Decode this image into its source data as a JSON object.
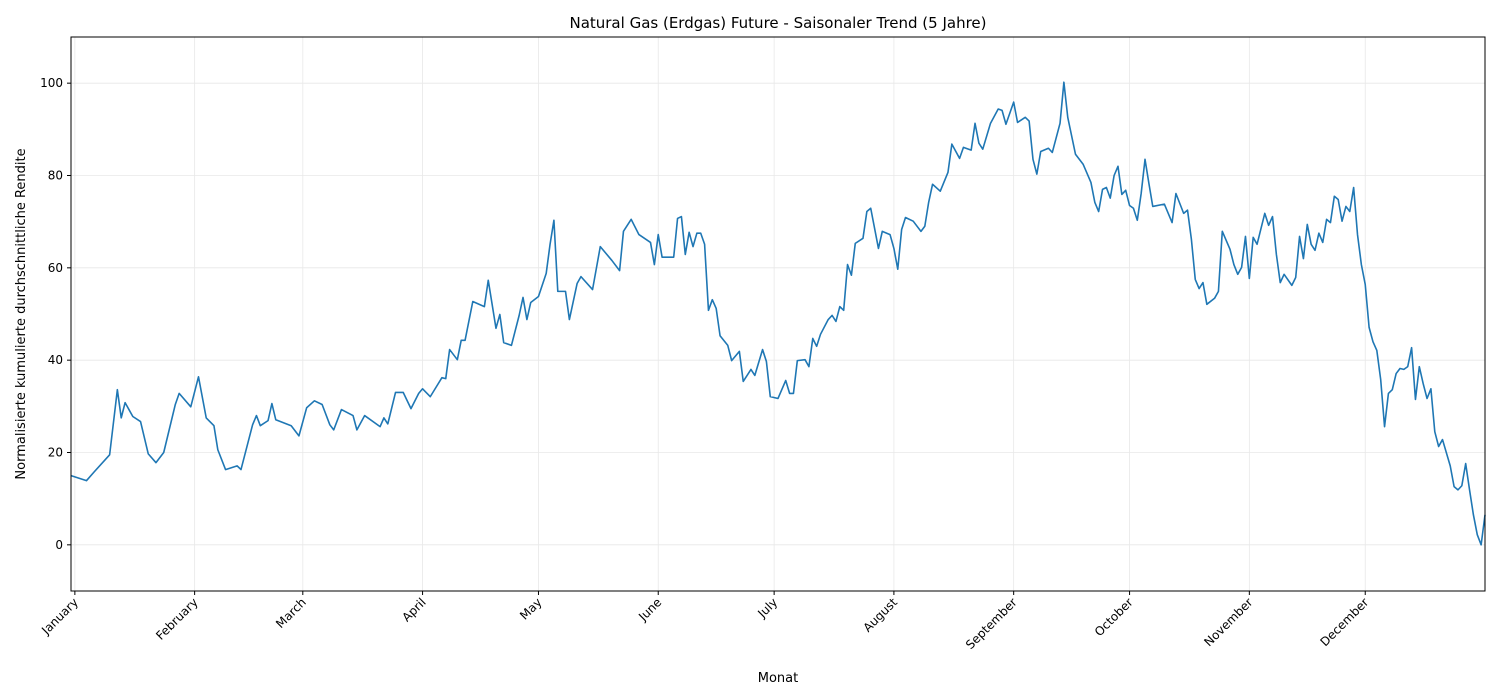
{
  "chart_data": {
    "type": "line",
    "title": "Natural Gas (Erdgas) Future - Saisonaler Trend (5 Jahre)",
    "xlabel": "Monat",
    "ylabel": "Normalisierte kumulierte durchschnittliche Rendite",
    "xlim": [
      0,
      366
    ],
    "ylim": [
      -10,
      110
    ],
    "xticks": [
      {
        "value": 1,
        "label": "January"
      },
      {
        "value": 32,
        "label": "February"
      },
      {
        "value": 60,
        "label": "March"
      },
      {
        "value": 91,
        "label": "April"
      },
      {
        "value": 121,
        "label": "May"
      },
      {
        "value": 152,
        "label": "June"
      },
      {
        "value": 182,
        "label": "July"
      },
      {
        "value": 213,
        "label": "August"
      },
      {
        "value": 244,
        "label": "September"
      },
      {
        "value": 274,
        "label": "October"
      },
      {
        "value": 305,
        "label": "November"
      },
      {
        "value": 335,
        "label": "December"
      }
    ],
    "yticks": [
      0,
      20,
      40,
      60,
      80,
      100
    ],
    "grid": true,
    "color": "#1f77b4",
    "x": [
      0,
      4,
      6,
      10,
      12,
      13,
      14,
      16,
      18,
      20,
      22,
      24,
      27,
      28,
      31,
      33,
      35,
      37,
      38,
      40,
      43,
      44,
      47,
      48,
      49,
      51,
      52,
      53,
      57,
      59,
      61,
      63,
      65,
      67,
      68,
      70,
      73,
      74,
      76,
      80,
      81,
      82,
      84,
      86,
      88,
      90,
      91,
      93,
      96,
      97,
      98,
      100,
      101,
      102,
      104,
      107,
      108,
      110,
      111,
      112,
      114,
      116,
      117,
      118,
      119,
      121,
      123,
      124,
      125,
      126,
      128,
      129,
      131,
      132,
      135,
      137,
      140,
      142,
      143,
      145,
      147,
      150,
      151,
      152,
      153,
      156,
      157,
      158,
      159,
      160,
      161,
      162,
      163,
      164,
      165,
      166,
      167,
      168,
      170,
      171,
      173,
      174,
      176,
      177,
      179,
      180,
      181,
      183,
      185,
      186,
      187,
      188,
      190,
      191,
      192,
      193,
      194,
      196,
      197,
      198,
      199,
      200,
      201,
      202,
      203,
      205,
      206,
      207,
      209,
      210,
      212,
      213,
      214,
      215,
      216,
      218,
      220,
      221,
      222,
      223,
      225,
      227,
      228,
      230,
      231,
      233,
      234,
      235,
      236,
      238,
      240,
      241,
      242,
      244,
      245,
      247,
      248,
      249,
      250,
      251,
      253,
      254,
      256,
      257,
      258,
      260,
      262,
      264,
      265,
      266,
      267,
      268,
      269,
      270,
      271,
      272,
      273,
      274,
      275,
      276,
      277,
      278,
      279,
      280,
      283,
      285,
      286,
      288,
      289,
      290,
      291,
      292,
      293,
      294,
      296,
      297,
      298,
      300,
      301,
      302,
      303,
      304,
      305,
      306,
      307,
      309,
      310,
      311,
      312,
      313,
      314,
      316,
      317,
      318,
      319,
      320,
      321,
      322,
      323,
      324,
      325,
      326,
      327,
      328,
      329,
      330,
      331,
      332,
      333,
      334,
      335,
      336,
      337,
      338,
      339,
      340,
      341,
      342,
      343,
      344,
      345,
      346,
      347,
      348,
      349,
      350,
      351,
      352,
      353,
      354,
      355,
      357,
      358,
      359,
      360,
      361,
      362,
      363,
      364,
      365,
      366
    ],
    "values": [
      15.0,
      13.9,
      15.8,
      19.5,
      33.6,
      27.5,
      30.8,
      27.8,
      26.7,
      19.7,
      17.8,
      20.0,
      30.4,
      32.8,
      29.9,
      36.4,
      27.5,
      25.8,
      20.6,
      16.3,
      17.1,
      16.3,
      26.0,
      28.0,
      25.8,
      26.9,
      30.6,
      27.1,
      25.8,
      23.6,
      29.7,
      31.2,
      30.4,
      26.0,
      24.9,
      29.3,
      28.0,
      24.9,
      28.0,
      25.6,
      27.5,
      26.2,
      33.0,
      33.0,
      29.5,
      32.8,
      33.8,
      32.1,
      36.2,
      36.0,
      42.3,
      40.1,
      44.3,
      44.3,
      52.7,
      51.6,
      57.3,
      46.9,
      49.9,
      43.8,
      43.2,
      49.7,
      53.6,
      48.8,
      52.5,
      53.8,
      58.8,
      65.1,
      70.3,
      54.9,
      54.9,
      48.8,
      56.6,
      58.1,
      55.3,
      64.6,
      61.6,
      59.4,
      67.9,
      70.5,
      67.2,
      65.5,
      60.7,
      67.2,
      62.3,
      62.3,
      70.7,
      71.1,
      62.9,
      67.7,
      64.6,
      67.5,
      67.5,
      65.1,
      50.8,
      53.1,
      51.2,
      45.3,
      43.2,
      39.9,
      41.9,
      35.4,
      38.0,
      36.7,
      42.3,
      39.7,
      32.1,
      31.7,
      35.6,
      32.8,
      32.8,
      39.9,
      40.1,
      38.6,
      44.7,
      43.0,
      45.6,
      48.8,
      49.7,
      48.4,
      51.6,
      50.8,
      60.7,
      58.4,
      65.3,
      66.4,
      72.2,
      72.9,
      64.2,
      67.9,
      67.2,
      64.2,
      59.7,
      68.3,
      70.9,
      70.1,
      67.9,
      69.0,
      74.2,
      78.1,
      76.6,
      80.7,
      86.8,
      83.7,
      86.1,
      85.5,
      91.3,
      87.0,
      85.7,
      91.3,
      94.4,
      94.1,
      91.1,
      95.9,
      91.5,
      92.6,
      91.8,
      83.5,
      80.3,
      85.2,
      85.9,
      85.0,
      91.3,
      100.2,
      92.6,
      84.6,
      82.4,
      78.5,
      74.2,
      72.2,
      77.0,
      77.4,
      75.1,
      80.0,
      82.0,
      75.9,
      76.8,
      73.5,
      72.9,
      70.3,
      76.1,
      83.5,
      78.3,
      73.3,
      73.8,
      69.8,
      76.1,
      71.8,
      72.5,
      66.2,
      57.5,
      55.5,
      56.8,
      52.1,
      53.4,
      54.9,
      67.9,
      64.0,
      60.7,
      58.6,
      60.1,
      66.8,
      57.7,
      66.6,
      65.1,
      71.8,
      69.2,
      71.1,
      62.9,
      56.8,
      58.6,
      56.2,
      57.9,
      66.8,
      62.0,
      69.4,
      65.1,
      63.8,
      67.5,
      65.5,
      70.5,
      69.8,
      75.5,
      74.8,
      70.1,
      73.3,
      72.2,
      77.4,
      67.2,
      60.7,
      56.4,
      47.1,
      44.0,
      42.1,
      35.8,
      25.6,
      32.8,
      33.6,
      37.1,
      38.2,
      38.0,
      38.6,
      42.7,
      31.5,
      38.6,
      34.9,
      31.7,
      33.8,
      24.5,
      21.3,
      22.8,
      17.1,
      12.6,
      11.9,
      12.8,
      17.6,
      11.9,
      6.5,
      2.2,
      0.0,
      6.5
    ]
  }
}
